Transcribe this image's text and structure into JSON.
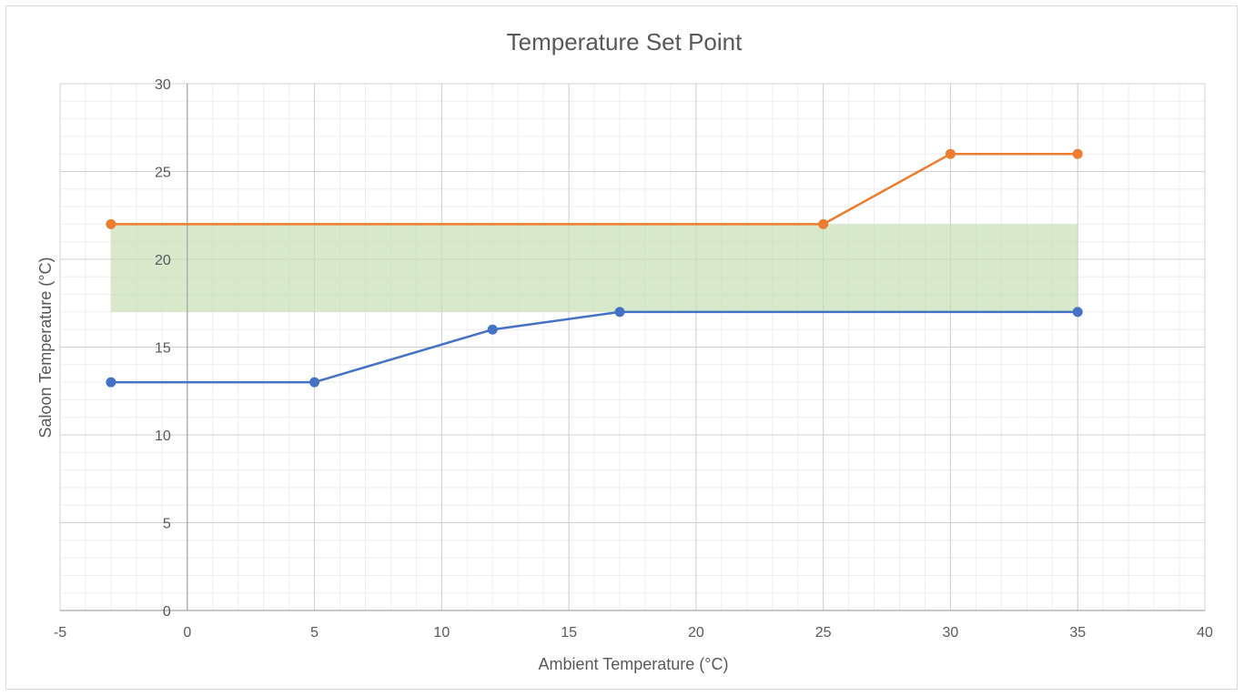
{
  "chart_data": {
    "type": "line",
    "title": "Temperature Set Point",
    "xlabel": "Ambient Temperature (°C)",
    "ylabel": "Saloon Temperature (°C)",
    "xlim": [
      -5,
      40
    ],
    "ylim": [
      0,
      30
    ],
    "x_ticks": [
      -5,
      0,
      5,
      10,
      15,
      20,
      25,
      30,
      35,
      40
    ],
    "y_ticks": [
      0,
      5,
      10,
      15,
      20,
      25,
      30
    ],
    "grid": true,
    "legend": false,
    "band": {
      "x": [
        -3,
        35
      ],
      "y": [
        17,
        22
      ],
      "color": "#c6e0b4"
    },
    "series": [
      {
        "color": "#4472c4",
        "x": [
          -3,
          5,
          12,
          17,
          35
        ],
        "y": [
          13,
          13,
          16,
          17,
          17
        ]
      },
      {
        "color": "#ed7d31",
        "x": [
          -3,
          25,
          30,
          35
        ],
        "y": [
          22,
          22,
          26,
          26
        ]
      }
    ]
  }
}
